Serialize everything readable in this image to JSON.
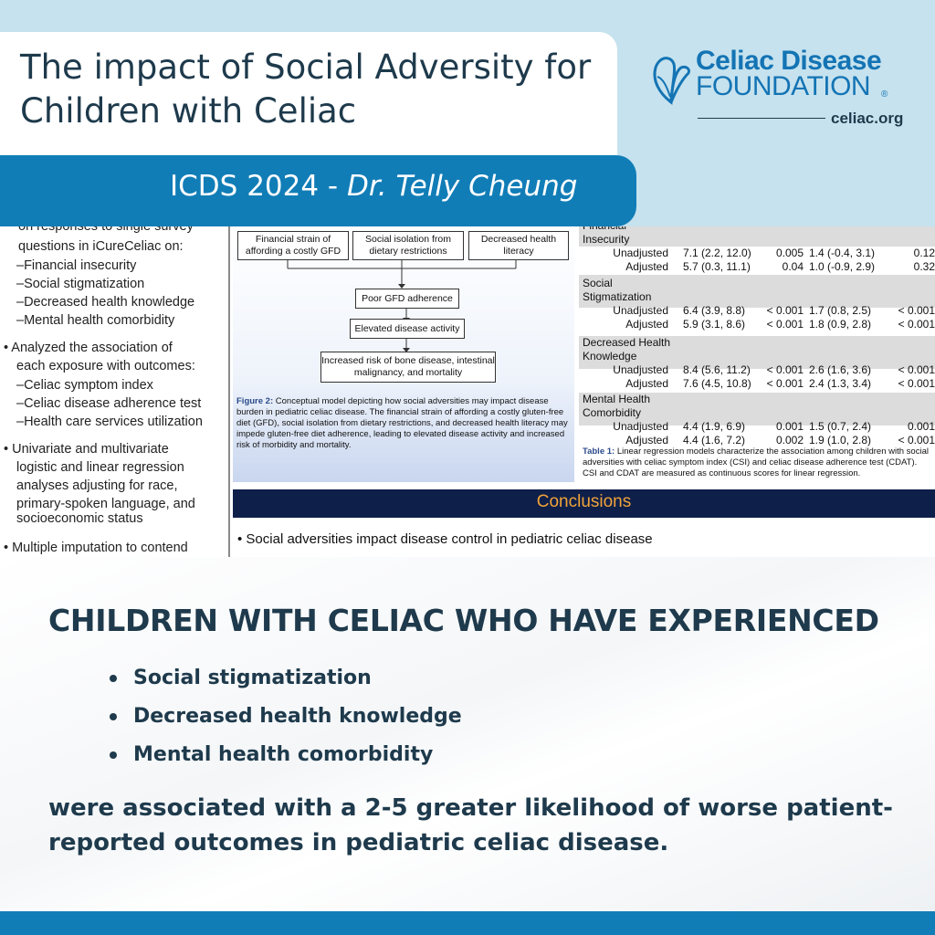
{
  "header": {
    "title": "The impact of Social Adversity for Children with Celiac",
    "band_prefix": "ICDS 2024 - ",
    "band_name": "Dr. Telly Cheung"
  },
  "logo": {
    "line1": "Celiac Disease",
    "line2": "FOUNDATION",
    "reg": "®",
    "url": "celiac.org",
    "icon": "butterfly-icon",
    "color": "#1474b4"
  },
  "poster": {
    "col1": {
      "cut_line": "on responses to single survey",
      "line2": "questions in iCureCeliac on:",
      "exposures": [
        "–Financial insecurity",
        "–Social stigmatization",
        "–Decreased health knowledge",
        "–Mental health comorbidity"
      ],
      "analyzed_1": "• Analyzed the association of",
      "analyzed_2": "each exposure with outcomes:",
      "outcomes": [
        "–Celiac symptom index",
        "–Celiac disease adherence test",
        "–Health care services utilization"
      ],
      "uni_lines": [
        "• Univariate and multivariate",
        "logistic and linear regression",
        "analyses adjusting for race,",
        "primary-spoken language, and",
        "socioeconomic status"
      ],
      "multi": "• Multiple imputation to contend"
    },
    "diagram": {
      "box_a": "Financial strain of affording a costly GFD",
      "box_b": "Social isolation from dietary restrictions",
      "box_c": "Decreased health literacy",
      "box_d": "Poor GFD adherence",
      "box_e": "Elevated disease activity",
      "box_f": "Increased risk of bone disease, intestinal malignancy, and mortality",
      "caption_label": "Figure 2:",
      "caption": " Conceptual model depicting how social adversities may impact disease burden in pediatric celiac disease. The financial strain of affording a costly gluten-free diet (GFD), social isolation from dietary restrictions, and decreased health literacy may impede gluten-free diet adherence, leading to elevated disease activity and increased risk of morbidity and mortality."
    },
    "table": {
      "groups": [
        {
          "label1": "Financial",
          "label2": "Insecurity",
          "rows": [
            {
              "kind": "Unadjusted",
              "csi": "7.1 (2.2, 12.0)",
              "p1": "0.005",
              "cdat": "1.4 (-0.4, 3.1)",
              "p2": "0.12"
            },
            {
              "kind": "Adjusted",
              "csi": "5.7 (0.3, 11.1)",
              "p1": "0.04",
              "cdat": "1.0 (-0.9, 2.9)",
              "p2": "0.32"
            }
          ]
        },
        {
          "label1": "Social",
          "label2": "Stigmatization",
          "rows": [
            {
              "kind": "Unadjusted",
              "csi": "6.4 (3.9, 8.8)",
              "p1": "< 0.001",
              "cdat": "1.7 (0.8, 2.5)",
              "p2": "< 0.001"
            },
            {
              "kind": "Adjusted",
              "csi": "5.9 (3.1, 8.6)",
              "p1": "< 0.001",
              "cdat": "1.8 (0.9, 2.8)",
              "p2": "< 0.001"
            }
          ]
        },
        {
          "label1": "Decreased Health",
          "label2": "Knowledge",
          "rows": [
            {
              "kind": "Unadjusted",
              "csi": "8.4 (5.6, 11.2)",
              "p1": "< 0.001",
              "cdat": "2.6 (1.6, 3.6)",
              "p2": "< 0.001"
            },
            {
              "kind": "Adjusted",
              "csi": "7.6 (4.5, 10.8)",
              "p1": "< 0.001",
              "cdat": "2.4 (1.3, 3.4)",
              "p2": "< 0.001"
            }
          ]
        },
        {
          "label1": "Mental Health",
          "label2": "Comorbidity",
          "rows": [
            {
              "kind": "Unadjusted",
              "csi": "4.4 (1.9, 6.9)",
              "p1": "0.001",
              "cdat": "1.5 (0.7, 2.4)",
              "p2": "0.001"
            },
            {
              "kind": "Adjusted",
              "csi": "4.4 (1.6, 7.2)",
              "p1": "0.002",
              "cdat": "1.9 (1.0, 2.8)",
              "p2": "< 0.001"
            }
          ]
        }
      ],
      "caption_label": "Table 1:",
      "caption": " Linear regression models characterize the association among children with social adversities with celiac symptom index (CSI) and celiac disease adherence test (CDAT). CSI and CDAT are measured as continuous scores for linear regression."
    },
    "conclusions_title": "Conclusions",
    "conclusion_1": "• Social adversities impact disease control in pediatric celiac disease"
  },
  "main": {
    "headline": "CHILDREN WITH CELIAC WHO HAVE EXPERIENCED",
    "bullets": [
      "Social stigmatization",
      "Decreased health knowledge",
      "Mental health comorbidity"
    ],
    "closing": "were associated with a 2-5 greater likelihood of worse patient-reported outcomes in pediatric celiac disease."
  }
}
